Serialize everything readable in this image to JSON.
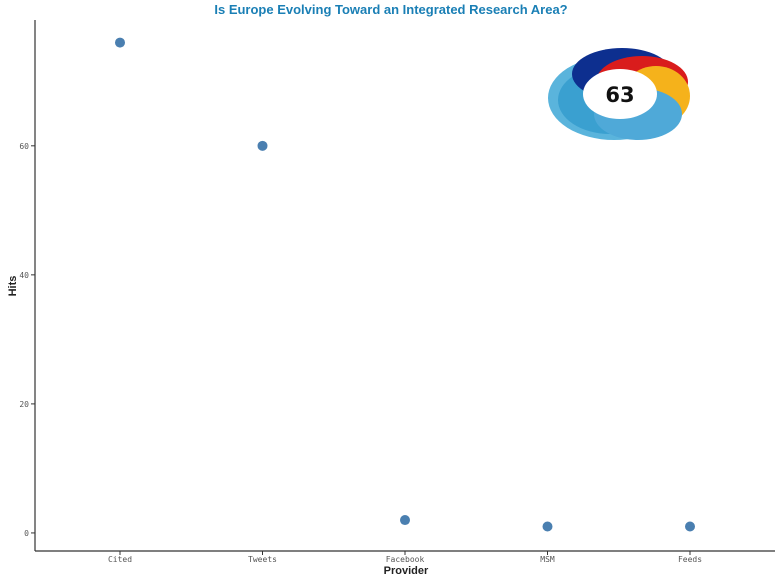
{
  "chart_data": {
    "type": "scatter",
    "title": "Is Europe Evolving Toward an Integrated Research Area?",
    "xlabel": "Provider",
    "ylabel": "Hits",
    "categories": [
      "Cited",
      "Tweets",
      "Facebook",
      "MSM",
      "Feeds"
    ],
    "values": [
      76,
      60,
      2,
      1,
      1
    ],
    "yticks": [
      0,
      20,
      40,
      60
    ],
    "ylim": [
      -2.8,
      79.5
    ],
    "grid": false,
    "colors": {
      "title": "#1a7fb5",
      "points": "#4a7fb0",
      "axis": "#333333"
    }
  },
  "badge": {
    "score": "63",
    "icon": "altmetric-donut-icon",
    "colors": [
      "#5ab4dc",
      "#3aa0d0",
      "#0d2f8f",
      "#d91c1c",
      "#f5b21b"
    ]
  }
}
